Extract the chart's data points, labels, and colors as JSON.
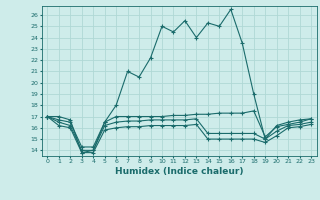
{
  "xlabel": "Humidex (Indice chaleur)",
  "bg_color": "#ceecea",
  "line_color": "#1a6b6b",
  "grid_color": "#b0d8d5",
  "xlim": [
    -0.5,
    23.5
  ],
  "ylim": [
    13.5,
    26.8
  ],
  "xticks": [
    0,
    1,
    2,
    3,
    4,
    5,
    6,
    7,
    8,
    9,
    10,
    11,
    12,
    13,
    14,
    15,
    16,
    17,
    18,
    19,
    20,
    21,
    22,
    23
  ],
  "yticks": [
    14,
    15,
    16,
    17,
    18,
    19,
    20,
    21,
    22,
    23,
    24,
    25,
    26
  ],
  "series": [
    [
      17.0,
      17.0,
      16.7,
      13.8,
      14.0,
      16.5,
      18.0,
      21.0,
      20.5,
      22.2,
      25.0,
      24.5,
      25.5,
      24.0,
      25.3,
      25.0,
      26.5,
      23.5,
      19.0,
      15.0,
      16.2,
      16.5,
      16.7,
      16.8
    ],
    [
      17.0,
      16.7,
      16.5,
      14.3,
      14.3,
      16.5,
      17.0,
      17.0,
      17.0,
      17.0,
      17.0,
      17.1,
      17.1,
      17.2,
      17.2,
      17.3,
      17.3,
      17.3,
      17.5,
      15.2,
      16.1,
      16.3,
      16.5,
      16.8
    ],
    [
      17.0,
      16.5,
      16.2,
      14.0,
      14.0,
      16.2,
      16.5,
      16.6,
      16.6,
      16.7,
      16.7,
      16.7,
      16.7,
      16.8,
      15.5,
      15.5,
      15.5,
      15.5,
      15.5,
      15.0,
      15.7,
      16.2,
      16.3,
      16.5
    ],
    [
      17.0,
      16.2,
      16.0,
      13.8,
      13.8,
      15.8,
      16.0,
      16.1,
      16.1,
      16.2,
      16.2,
      16.2,
      16.2,
      16.3,
      15.0,
      15.0,
      15.0,
      15.0,
      15.0,
      14.7,
      15.3,
      16.0,
      16.1,
      16.3
    ]
  ]
}
